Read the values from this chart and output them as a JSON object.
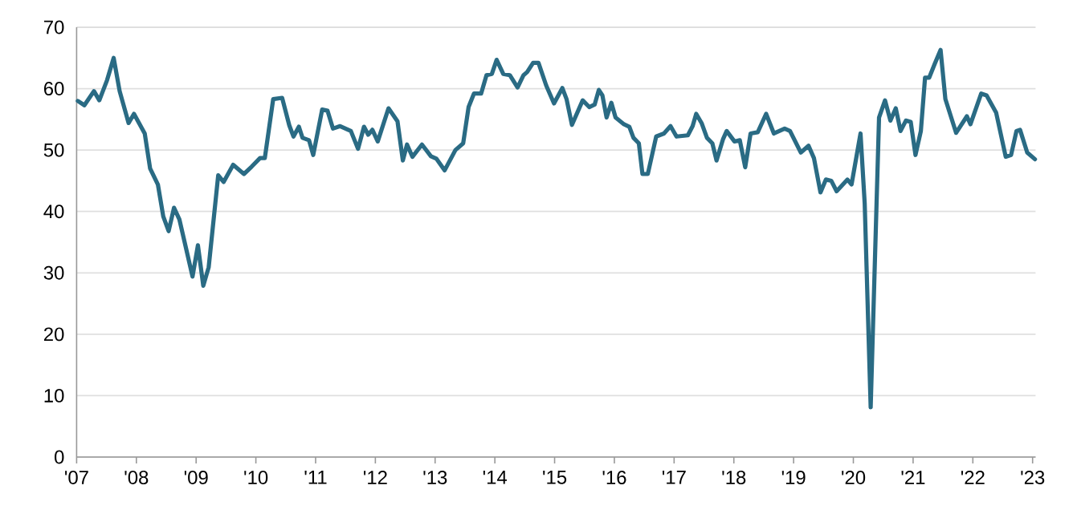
{
  "chart_data": {
    "type": "line",
    "x": [
      2007.02,
      2007.13,
      2007.29,
      2007.38,
      2007.51,
      2007.62,
      2007.72,
      2007.87,
      2007.96,
      2008.14,
      2008.23,
      2008.36,
      2008.45,
      2008.54,
      2008.63,
      2008.72,
      2008.94,
      2009.03,
      2009.12,
      2009.21,
      2009.37,
      2009.46,
      2009.62,
      2009.8,
      2009.93,
      2010.07,
      2010.15,
      2010.29,
      2010.44,
      2010.56,
      2010.63,
      2010.72,
      2010.78,
      2010.89,
      2010.96,
      2011.11,
      2011.2,
      2011.29,
      2011.41,
      2011.59,
      2011.71,
      2011.81,
      2011.88,
      2011.95,
      2012.04,
      2012.22,
      2012.37,
      2012.46,
      2012.53,
      2012.62,
      2012.78,
      2012.93,
      2013.02,
      2013.16,
      2013.34,
      2013.47,
      2013.56,
      2013.65,
      2013.77,
      2013.86,
      2013.95,
      2014.03,
      2014.14,
      2014.25,
      2014.38,
      2014.48,
      2014.54,
      2014.64,
      2014.73,
      2014.86,
      2014.99,
      2015.13,
      2015.2,
      2015.29,
      2015.47,
      2015.58,
      2015.67,
      2015.74,
      2015.8,
      2015.87,
      2015.95,
      2016.02,
      2016.16,
      2016.25,
      2016.32,
      2016.41,
      2016.47,
      2016.56,
      2016.7,
      2016.83,
      2016.94,
      2017.04,
      2017.23,
      2017.31,
      2017.37,
      2017.46,
      2017.55,
      2017.64,
      2017.71,
      2017.82,
      2017.88,
      2018.01,
      2018.1,
      2018.19,
      2018.28,
      2018.4,
      2018.54,
      2018.67,
      2018.85,
      2018.94,
      2019.12,
      2019.25,
      2019.34,
      2019.45,
      2019.54,
      2019.63,
      2019.72,
      2019.9,
      2019.97,
      2020.12,
      2020.19,
      2020.29,
      2020.43,
      2020.53,
      2020.62,
      2020.71,
      2020.79,
      2020.88,
      2020.96,
      2021.04,
      2021.13,
      2021.2,
      2021.27,
      2021.36,
      2021.46,
      2021.54,
      2021.72,
      2021.9,
      2021.96,
      2022.14,
      2022.23,
      2022.39,
      2022.55,
      2022.64,
      2022.73,
      2022.79,
      2022.91,
      2023.04
    ],
    "values": [
      58.0,
      57.3,
      59.6,
      58.1,
      61.4,
      65.0,
      59.6,
      54.4,
      55.9,
      52.7,
      47.0,
      44.4,
      39.2,
      36.8,
      40.6,
      38.7,
      29.4,
      34.5,
      27.9,
      30.9,
      45.9,
      44.8,
      47.6,
      46.1,
      47.3,
      48.7,
      48.7,
      58.3,
      58.5,
      54.0,
      52.2,
      53.8,
      52.0,
      51.6,
      49.2,
      56.6,
      56.4,
      53.5,
      53.9,
      53.1,
      50.2,
      53.8,
      52.5,
      53.3,
      51.4,
      56.8,
      54.7,
      48.3,
      50.9,
      48.9,
      50.9,
      49.0,
      48.6,
      46.7,
      50.0,
      51.1,
      57.0,
      59.2,
      59.2,
      62.2,
      62.4,
      64.7,
      62.4,
      62.2,
      60.2,
      62.2,
      62.7,
      64.2,
      64.2,
      60.5,
      57.6,
      60.1,
      58.3,
      54.1,
      58.1,
      57.0,
      57.4,
      59.8,
      58.9,
      55.3,
      57.7,
      55.3,
      54.2,
      53.8,
      52.0,
      51.1,
      46.1,
      46.1,
      52.2,
      52.7,
      53.9,
      52.2,
      52.4,
      53.9,
      55.9,
      54.4,
      52.0,
      51.1,
      48.3,
      51.8,
      53.1,
      51.4,
      51.6,
      47.2,
      52.7,
      52.9,
      55.9,
      52.7,
      53.5,
      53.1,
      49.6,
      50.7,
      48.7,
      43.1,
      45.2,
      45.0,
      43.3,
      45.2,
      44.4,
      52.7,
      41.3,
      8.1,
      55.3,
      58.1,
      54.8,
      56.8,
      53.1,
      54.8,
      54.6,
      49.2,
      53.1,
      61.8,
      61.8,
      64.0,
      66.3,
      58.3,
      52.8,
      55.5,
      54.2,
      59.2,
      58.9,
      56.1,
      48.9,
      49.2,
      53.1,
      53.3,
      49.6,
      48.5
    ],
    "color": "#2a6b84",
    "xlim": [
      2007,
      2023.05
    ],
    "xticks": [
      {
        "value": 2007,
        "label": "'07"
      },
      {
        "value": 2008,
        "label": "'08"
      },
      {
        "value": 2009,
        "label": "'09"
      },
      {
        "value": 2010,
        "label": "'10"
      },
      {
        "value": 2011,
        "label": "'11"
      },
      {
        "value": 2012,
        "label": "'12"
      },
      {
        "value": 2013,
        "label": "'13"
      },
      {
        "value": 2014,
        "label": "'14"
      },
      {
        "value": 2015,
        "label": "'15"
      },
      {
        "value": 2016,
        "label": "'16"
      },
      {
        "value": 2017,
        "label": "'17"
      },
      {
        "value": 2018,
        "label": "'18"
      },
      {
        "value": 2019,
        "label": "'19"
      },
      {
        "value": 2020,
        "label": "'20"
      },
      {
        "value": 2021,
        "label": "'21"
      },
      {
        "value": 2022,
        "label": "'22"
      },
      {
        "value": 2023,
        "label": "'23"
      }
    ],
    "ylim": [
      0,
      70
    ],
    "yticks": [
      0,
      10,
      20,
      30,
      40,
      50,
      60,
      70
    ],
    "grid": "y",
    "marker": "none",
    "line_style": "solid"
  }
}
